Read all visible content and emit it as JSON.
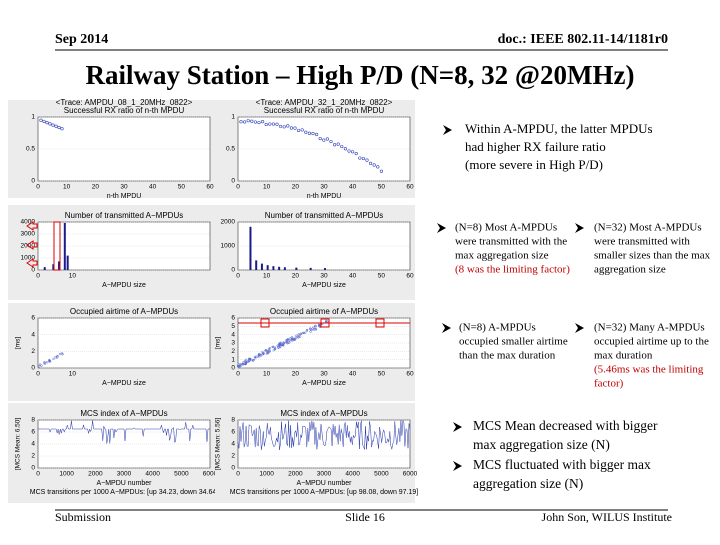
{
  "header": {
    "date": "Sep 2014",
    "doc": "doc.: IEEE 802.11-14/1181r0"
  },
  "title": "Railway Station – High P/D (N=8, 32 @20MHz)",
  "plots": [
    {
      "title": [
        "<Trace: AMPDU_08_1_20MHz_0822>",
        "Successful RX ratio of n-th MPDU"
      ],
      "xlabel": [
        "n-th MPDU"
      ],
      "ylabel": "",
      "xticks": [
        "0",
        "10",
        "20",
        "30",
        "40",
        "50",
        "60"
      ],
      "yticks": [
        "0",
        "0.5",
        "1"
      ]
    },
    {
      "title": [
        "<Trace: AMPDU_32_1_20MHz_0822>",
        "Successful RX ratio of n-th MPDU"
      ],
      "xlabel": [
        "n-th MPDU"
      ],
      "ylabel": "",
      "xticks": [
        "0",
        "10",
        "20",
        "30",
        "40",
        "50",
        "60"
      ],
      "yticks": [
        "0",
        "0.5",
        "1"
      ]
    },
    {
      "title": [
        "Number of transmitted A−MPDUs"
      ],
      "xlabel": [
        "A−MPDU size"
      ],
      "ylabel": "",
      "xticks": [
        "0",
        "10"
      ],
      "yticks": [
        "0",
        "1000",
        "2000",
        "3000",
        "4000"
      ]
    },
    {
      "title": [
        "Number of transmitted A−MPDUs"
      ],
      "xlabel": [
        "A−MPDU size"
      ],
      "ylabel": "",
      "xticks": [
        "0",
        "10",
        "20",
        "30",
        "40",
        "50",
        "60"
      ],
      "yticks": [
        "0",
        "1000",
        "2000"
      ]
    },
    {
      "title": [
        "Occupied airtime of A−MPDUs"
      ],
      "xlabel": [
        "A−MPDU size"
      ],
      "ylabel": "[ms]",
      "xticks": [
        "0",
        "10"
      ],
      "yticks": [
        "0",
        "2",
        "4",
        "6"
      ]
    },
    {
      "title": [
        "Occupied airtime of A−MPDUs"
      ],
      "xlabel": [
        "A−MPDU size"
      ],
      "ylabel": "[ms]",
      "xticks": [
        "0",
        "10",
        "20",
        "30",
        "40",
        "50",
        "60"
      ],
      "yticks": [
        "0",
        "1",
        "2",
        "3",
        "4",
        "5",
        "6"
      ]
    },
    {
      "title": [
        "MCS index of A−MPDUs"
      ],
      "xlabel": [
        "A−MPDU number",
        "MCS transitions per 1000 A−MPDUs: [up 34.23, down 34.64]"
      ],
      "ylabel": "[MCS Mean: 6.50]",
      "xticks": [
        "0",
        "1000",
        "2000",
        "3000",
        "4000",
        "5000",
        "6000"
      ],
      "yticks": [
        "0",
        "2",
        "4",
        "6",
        "8"
      ]
    },
    {
      "title": [
        "MCS index of A−MPDUs"
      ],
      "xlabel": [
        "A−MPDU number",
        "MCS transitions per 1000 A−MPDUs: [up 98.08, down 97.19]"
      ],
      "ylabel": "[MCS Mean: 5.56]",
      "xticks": [
        "0",
        "1000",
        "2000",
        "3000",
        "4000",
        "5000",
        "6000"
      ],
      "yticks": [
        "0",
        "2",
        "4",
        "6",
        "8"
      ]
    }
  ],
  "bullets": [
    {
      "lines": [
        "Within A-MPDU, the latter MPDUs",
        "had higher RX failure ratio",
        "(more severe in High P/D)"
      ],
      "red": []
    },
    {
      "lines": [
        "(N=8) Most A-MPDUs",
        "were transmitted with the",
        "max aggregation size"
      ],
      "red": [
        "(8 was the limiting factor)"
      ]
    },
    {
      "lines": [
        "(N=32) Most A-MPDUs",
        "were transmitted with",
        "smaller sizes than the max",
        "aggregation size"
      ],
      "red": []
    },
    {
      "lines": [
        "(N=8) A-MPDUs",
        "occupied smaller airtime",
        "than the max duration"
      ],
      "red": []
    },
    {
      "lines": [
        "(N=32) Many A-MPDUs",
        "occupied airtime up to the",
        "max duration"
      ],
      "red": [
        "(5.46ms was the limiting",
        "factor)"
      ]
    },
    {
      "lines": [
        "MCS Mean decreased with bigger",
        "max aggregation size (N)"
      ],
      "red": []
    },
    {
      "lines": [
        "MCS fluctuated with bigger max",
        "aggregation size (N)"
      ],
      "red": []
    }
  ],
  "footer": {
    "left": "Submission",
    "center": "Slide 16",
    "right": "John Son, WILUS Institute"
  }
}
